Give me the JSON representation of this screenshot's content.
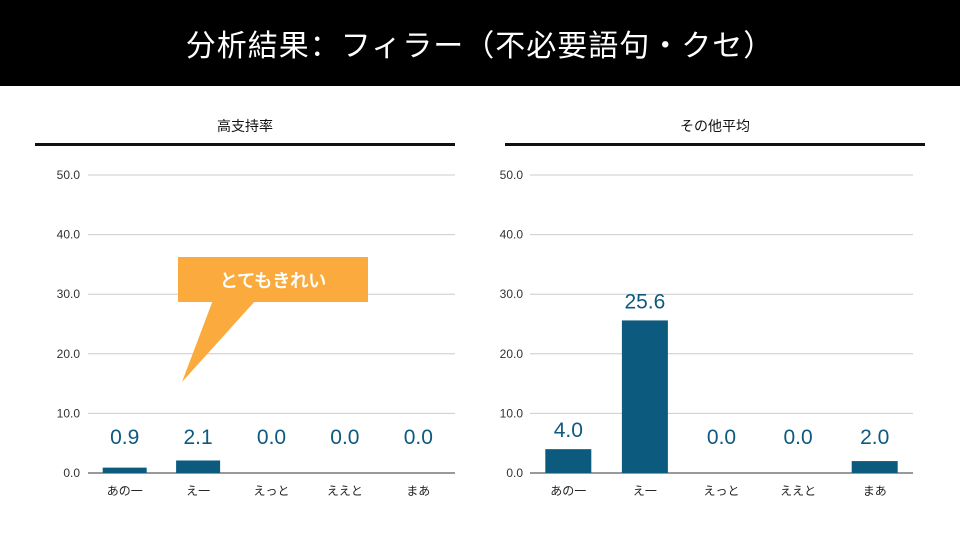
{
  "slide": {
    "title": "分析結果：フィラー（不必要語句・クセ）",
    "callout": "とてもきれい"
  },
  "colors": {
    "bar": "#0d5a7f",
    "callout": "#fbab3d",
    "title_bg": "#000000"
  },
  "chart_data": [
    {
      "type": "bar",
      "title": "高支持率",
      "categories": [
        "あの一",
        "え一",
        "えっと",
        "ええと",
        "まあ"
      ],
      "values": [
        0.9,
        2.1,
        0.0,
        0.0,
        0.0
      ],
      "data_labels": [
        "0.9",
        "2.1",
        "0.0",
        "0.0",
        "0.0"
      ],
      "yticks": [
        "0.0",
        "10.0",
        "20.0",
        "30.0",
        "40.0",
        "50.0"
      ],
      "ylim": [
        0,
        50
      ],
      "grid": true
    },
    {
      "type": "bar",
      "title": "その他平均",
      "categories": [
        "あの一",
        "え一",
        "えっと",
        "ええと",
        "まあ"
      ],
      "values": [
        4.0,
        25.6,
        0.0,
        0.0,
        2.0
      ],
      "data_labels": [
        "4.0",
        "25.6",
        "0.0",
        "0.0",
        "2.0"
      ],
      "yticks": [
        "0.0",
        "10.0",
        "20.0",
        "30.0",
        "40.0",
        "50.0"
      ],
      "ylim": [
        0,
        50
      ],
      "grid": true
    }
  ]
}
